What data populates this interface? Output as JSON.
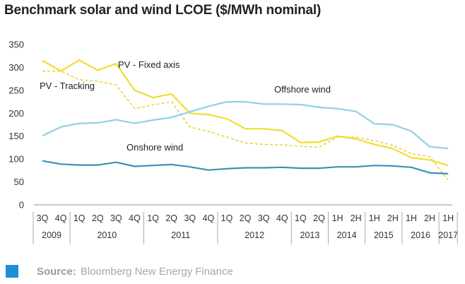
{
  "title": "Benchmark solar and wind LCOE ($/MWh nominal)",
  "source": {
    "label": "Source:",
    "text": "Bloomberg New Energy Finance"
  },
  "chart_data": {
    "type": "line",
    "title": "Benchmark solar and wind LCOE ($/MWh nominal)",
    "ylim": [
      0,
      350
    ],
    "yticks": [
      0,
      50,
      100,
      150,
      200,
      250,
      300,
      350
    ],
    "grid": false,
    "categories": [
      "3Q",
      "4Q",
      "1Q",
      "2Q",
      "3Q",
      "4Q",
      "1Q",
      "2Q",
      "3Q",
      "4Q",
      "1Q",
      "2Q",
      "3Q",
      "4Q",
      "1Q",
      "2Q",
      "1H",
      "2H",
      "1H",
      "2H",
      "1H",
      "2H",
      "1H"
    ],
    "year_groups": [
      {
        "label": "2009",
        "span": 2
      },
      {
        "label": "2010",
        "span": 4
      },
      {
        "label": "2011",
        "span": 4
      },
      {
        "label": "2012",
        "span": 4
      },
      {
        "label": "2013",
        "span": 2
      },
      {
        "label": "2014",
        "span": 2
      },
      {
        "label": "2015",
        "span": 2
      },
      {
        "label": "2016",
        "span": 2
      },
      {
        "label": "2017",
        "span": 1
      }
    ],
    "series": [
      {
        "name": "PV - Fixed axis",
        "color": "#f2dc2e",
        "dash": false,
        "values": [
          315,
          292,
          316,
          294,
          308,
          250,
          234,
          242,
          200,
          197,
          188,
          166,
          166,
          162,
          136,
          137,
          150,
          144,
          132,
          123,
          103,
          98,
          86
        ]
      },
      {
        "name": "PV - Tracking",
        "color": "#e9d33a",
        "dash": true,
        "values": [
          292,
          292,
          273,
          270,
          262,
          210,
          218,
          225,
          170,
          160,
          148,
          135,
          132,
          131,
          128,
          126,
          148,
          148,
          140,
          130,
          112,
          105,
          54
        ]
      },
      {
        "name": "Offshore wind",
        "color": "#8fd0e6",
        "dash": false,
        "values": [
          151,
          170,
          178,
          179,
          186,
          178,
          185,
          191,
          203,
          215,
          225,
          225,
          220,
          220,
          219,
          213,
          210,
          204,
          177,
          175,
          161,
          127,
          123
        ]
      },
      {
        "name": "Onshore wind",
        "color": "#3f8fb8",
        "dash": false,
        "values": [
          96,
          89,
          87,
          87,
          93,
          84,
          86,
          88,
          83,
          76,
          79,
          81,
          81,
          82,
          80,
          80,
          83,
          83,
          86,
          85,
          82,
          70,
          68
        ]
      }
    ],
    "annotations": [
      {
        "text": "PV - Fixed axis",
        "series": "PV - Fixed axis"
      },
      {
        "text": "PV - Tracking",
        "series": "PV - Tracking"
      },
      {
        "text": "Offshore wind",
        "series": "Offshore wind"
      },
      {
        "text": "Onshore wind",
        "series": "Onshore wind"
      }
    ]
  }
}
